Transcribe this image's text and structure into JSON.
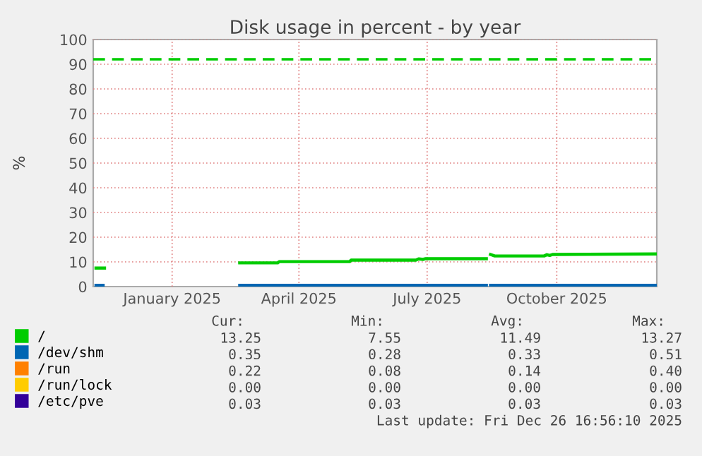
{
  "chart_data": {
    "type": "line",
    "title": "Disk usage in percent - by year",
    "ylabel": "%",
    "xlim": [
      "2024-11-21",
      "2025-12-26"
    ],
    "ylim": [
      0,
      100
    ],
    "yticks": [
      0,
      10,
      20,
      30,
      40,
      50,
      60,
      70,
      80,
      90,
      100
    ],
    "xticks": [
      {
        "value": "2025-01-16",
        "label": "January 2025"
      },
      {
        "value": "2025-04-16",
        "label": "April 2025"
      },
      {
        "value": "2025-07-16",
        "label": "July 2025"
      },
      {
        "value": "2025-10-16",
        "label": "October 2025"
      }
    ],
    "grid": true,
    "legend": "bottom",
    "marker": "none",
    "line_style": "solid",
    "ref_lines": [
      {
        "axis": "y",
        "value": 92,
        "label": null,
        "color": "#00cc00",
        "line_style": "dashed"
      }
    ],
    "series": [
      {
        "name": "/",
        "color": "#00cc00",
        "x": [
          "2024-11-23",
          "2024-11-29",
          "2024-11-30",
          "2025-03-05",
          "2025-04-01",
          "2025-04-02",
          "2025-05-22",
          "2025-05-23",
          "2025-07-08",
          "2025-07-10",
          "2025-07-13",
          "2025-07-15",
          "2025-08-27",
          "2025-08-28",
          "2025-08-30",
          "2025-09-02",
          "2025-10-07",
          "2025-10-09",
          "2025-10-11",
          "2025-10-13",
          "2025-12-26"
        ],
        "values": [
          7.5,
          7.5,
          null,
          9.6,
          9.6,
          10.1,
          10.1,
          10.7,
          10.7,
          11.2,
          11.0,
          11.3,
          11.3,
          null,
          13.0,
          12.4,
          12.4,
          12.9,
          12.6,
          13.0,
          13.2
        ]
      },
      {
        "name": "/dev/shm",
        "color": "#0066b3",
        "x": [
          "2024-11-23",
          "2024-11-28",
          "2024-11-29",
          "2025-03-05",
          "2025-08-27",
          "2025-08-28",
          "2025-08-30",
          "2025-12-26"
        ],
        "values": [
          0.5,
          0.5,
          null,
          0.5,
          0.5,
          null,
          0.5,
          0.5
        ]
      },
      {
        "name": "/run",
        "color": "#ff8000"
      },
      {
        "name": "/run/lock",
        "color": "#ffcc00"
      },
      {
        "name": "/etc/pve",
        "color": "#330099"
      }
    ],
    "annotations": [
      "Cur:",
      "Min:",
      "Avg:",
      "Max:",
      "13.25",
      "7.55",
      "11.49",
      "13.27",
      "0.35",
      "0.28",
      "0.33",
      "0.51",
      "0.22",
      "0.08",
      "0.14",
      "0.40",
      "0.00",
      "0.00",
      "0.00",
      "0.00",
      "0.03",
      "0.03",
      "0.03",
      "0.03",
      "Last update: Fri Dec 26 16:56:10 2025"
    ]
  }
}
